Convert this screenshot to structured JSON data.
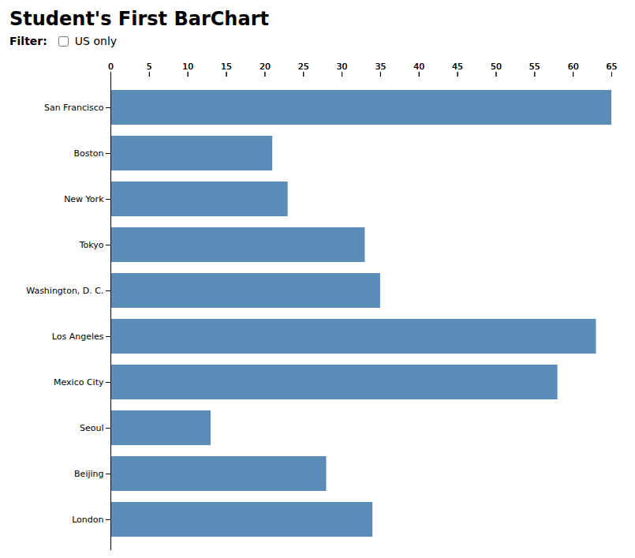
{
  "chart_data": {
    "type": "bar",
    "title": "Student's First BarChart",
    "annotations": [
      "Filter:",
      "US only"
    ],
    "categories": [
      "San Francisco",
      "Boston",
      "New York",
      "Tokyo",
      "Washington, D. C.",
      "Los Angeles",
      "Mexico City",
      "Seoul",
      "Beijing",
      "London"
    ],
    "values": [
      65,
      21,
      23,
      33,
      35,
      63,
      58,
      13,
      28,
      34
    ],
    "color": "#5b8db8",
    "orientation": "horizontal",
    "xlim": [
      0,
      65
    ],
    "xticks": [
      0,
      5,
      10,
      15,
      20,
      25,
      30,
      35,
      40,
      45,
      50,
      55,
      60,
      65
    ],
    "grid": false
  }
}
